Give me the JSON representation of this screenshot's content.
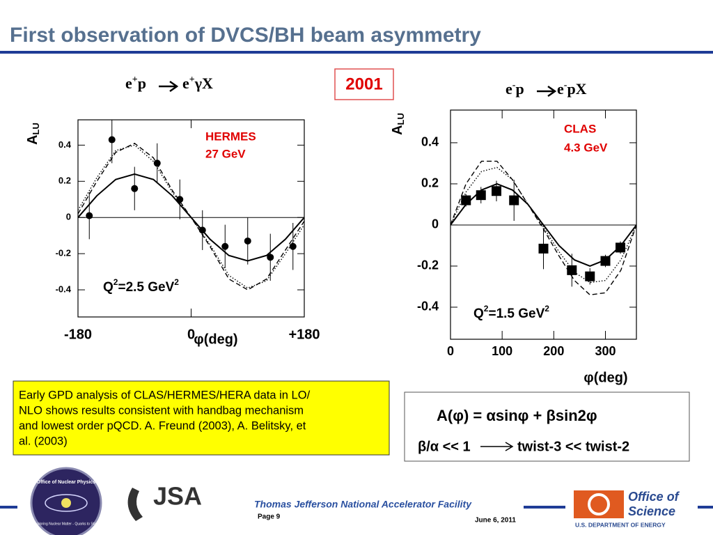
{
  "title": "First observation of DVCS/BH beam asymmetry",
  "reactions": [
    {
      "lhs": "e",
      "lhs_sup": "+",
      "lhs_rest": "p",
      "rhs": "e",
      "rhs_sup": "+",
      "rhs_rest": "γX"
    },
    {
      "lhs": "e",
      "lhs_sup": "-",
      "lhs_rest": "p",
      "rhs": "e",
      "rhs_sup": "-",
      "rhs_rest": "pX"
    }
  ],
  "year": "2001",
  "chart_data": [
    {
      "type": "scatter",
      "marker": "circle",
      "y_label": [
        "A",
        "LU"
      ],
      "x_label": "φ(deg)",
      "annotations": [
        "HERMES",
        "27 GeV"
      ],
      "q_label": [
        "Q",
        "2",
        "=2.5 GeV",
        "2"
      ],
      "xlim": [
        -180,
        180
      ],
      "xticks": [
        -180,
        0,
        {
          "value": 180,
          "label": "+180"
        }
      ],
      "ylim": [
        -0.55,
        0.54
      ],
      "yticks": [
        0.4,
        0.2,
        0,
        -0.2,
        -0.4
      ],
      "points": {
        "x": [
          -162,
          -126,
          -90,
          -54,
          -18,
          18,
          54,
          90,
          126,
          162
        ],
        "values": [
          0.01,
          0.43,
          0.16,
          0.3,
          0.1,
          -0.07,
          -0.16,
          -0.13,
          -0.22,
          -0.16
        ],
        "errors": [
          0.13,
          0.13,
          0.12,
          0.11,
          0.11,
          0.11,
          0.12,
          0.13,
          0.13,
          0.13
        ]
      },
      "curve_x": [
        -180,
        -150,
        -120,
        -90,
        -60,
        -30,
        0,
        30,
        60,
        90,
        120,
        150,
        180
      ],
      "curves": [
        {
          "style": "solid",
          "values": [
            0,
            0.12,
            0.21,
            0.24,
            0.21,
            0.12,
            0,
            -0.12,
            -0.21,
            -0.24,
            -0.21,
            -0.12,
            0
          ]
        },
        {
          "style": "dashed",
          "values": [
            0.02,
            0.2,
            0.36,
            0.41,
            0.33,
            0.15,
            0,
            -0.16,
            -0.34,
            -0.4,
            -0.34,
            -0.18,
            -0.02
          ]
        },
        {
          "style": "dotted",
          "values": [
            0.04,
            0.22,
            0.37,
            0.4,
            0.31,
            0.14,
            0,
            -0.15,
            -0.32,
            -0.39,
            -0.35,
            -0.2,
            -0.04
          ]
        }
      ]
    },
    {
      "type": "scatter",
      "marker": "square",
      "y_label": [
        "A",
        "LU"
      ],
      "x_label": "φ(deg)",
      "annotations": [
        "CLAS",
        "4.3 GeV"
      ],
      "q_label": [
        "Q",
        "2",
        "=1.5 GeV",
        "2"
      ],
      "xlim": [
        0,
        360
      ],
      "xticks": [
        0,
        100,
        200,
        300
      ],
      "ylim": [
        -0.556,
        0.559
      ],
      "yticks": [
        0.4,
        0.2,
        0,
        -0.2,
        -0.4
      ],
      "points": {
        "x": [
          30,
          59,
          89,
          123,
          180,
          235,
          270,
          300,
          329
        ],
        "values": [
          0.12,
          0.145,
          0.165,
          0.12,
          -0.115,
          -0.22,
          -0.25,
          -0.175,
          -0.11
        ],
        "errors": [
          0.03,
          0.04,
          0.05,
          0.1,
          0.1,
          0.08,
          0.04,
          0.03,
          0.03
        ]
      },
      "curve_x": [
        0,
        30,
        60,
        90,
        120,
        150,
        180,
        210,
        240,
        270,
        300,
        330,
        360
      ],
      "curves": [
        {
          "style": "solid",
          "values": [
            0,
            0.1,
            0.17,
            0.2,
            0.17,
            0.1,
            0,
            -0.1,
            -0.17,
            -0.2,
            -0.17,
            -0.1,
            0
          ]
        },
        {
          "style": "dashed",
          "values": [
            0,
            0.2,
            0.31,
            0.31,
            0.22,
            0.1,
            -0.02,
            -0.15,
            -0.27,
            -0.34,
            -0.33,
            -0.22,
            0
          ]
        },
        {
          "style": "dotted",
          "values": [
            0,
            0.16,
            0.26,
            0.28,
            0.22,
            0.1,
            -0.01,
            -0.13,
            -0.23,
            -0.28,
            -0.27,
            -0.17,
            0
          ]
        }
      ]
    }
  ],
  "note_lines": [
    "Early GPD analysis of CLAS/HERMES/HERA data in LO/",
    "NLO shows results consistent with handbag mechanism",
    "and lowest order pQCD.  A. Freund (2003), A. Belitsky, et",
    "al. (2003)"
  ],
  "formula": "A(φ) = αsinφ + βsin2φ",
  "ratio": "β/α << 1",
  "twist": "twist-3 << twist-2",
  "footer": {
    "lab": "Thomas Jefferson National Accelerator Facility",
    "page": "Page 9",
    "date": "June 6, 2011"
  },
  "logos": {
    "onp": "Office of Nuclear Physics",
    "onp_motto": "Exploring Nuclear Matter - Quarks to Stars",
    "jsa": "JSA",
    "oos_1": "Office of",
    "oos_2": "Science",
    "doe": "U.S. DEPARTMENT OF ENERGY"
  }
}
